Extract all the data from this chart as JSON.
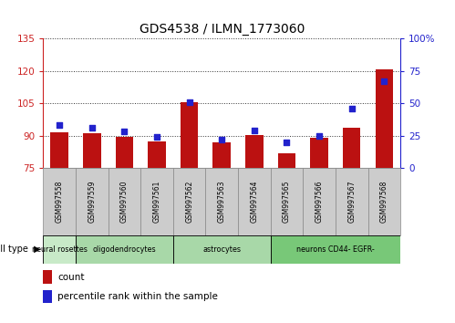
{
  "title": "GDS4538 / ILMN_1773060",
  "samples": [
    "GSM997558",
    "GSM997559",
    "GSM997560",
    "GSM997561",
    "GSM997562",
    "GSM997563",
    "GSM997564",
    "GSM997565",
    "GSM997566",
    "GSM997567",
    "GSM997568"
  ],
  "count_values": [
    91.5,
    91.0,
    89.5,
    87.5,
    105.5,
    87.0,
    90.5,
    82.0,
    89.0,
    93.5,
    121.0
  ],
  "percentile_values": [
    33,
    31,
    28,
    24,
    51,
    22,
    29,
    20,
    25,
    46,
    67
  ],
  "cell_type_groups": [
    {
      "label": "neural rosettes",
      "start": 0,
      "end": 0,
      "color": "#c8eac8"
    },
    {
      "label": "oligodendrocytes",
      "start": 1,
      "end": 3,
      "color": "#a8d8a8"
    },
    {
      "label": "astrocytes",
      "start": 4,
      "end": 6,
      "color": "#a8d8a8"
    },
    {
      "label": "neurons CD44- EGFR-",
      "start": 7,
      "end": 10,
      "color": "#78c878"
    }
  ],
  "ylim_left": [
    75,
    135
  ],
  "ylim_right": [
    0,
    100
  ],
  "yticks_left": [
    75,
    90,
    105,
    120,
    135
  ],
  "yticks_right": [
    0,
    25,
    50,
    75,
    100
  ],
  "bar_color": "#bb1111",
  "dot_color": "#2222cc",
  "bar_width": 0.55,
  "bg_color": "#ffffff",
  "left_axis_color": "#cc2222",
  "right_axis_color": "#2222cc",
  "sample_box_color": "#cccccc",
  "grid_color": "#333333"
}
